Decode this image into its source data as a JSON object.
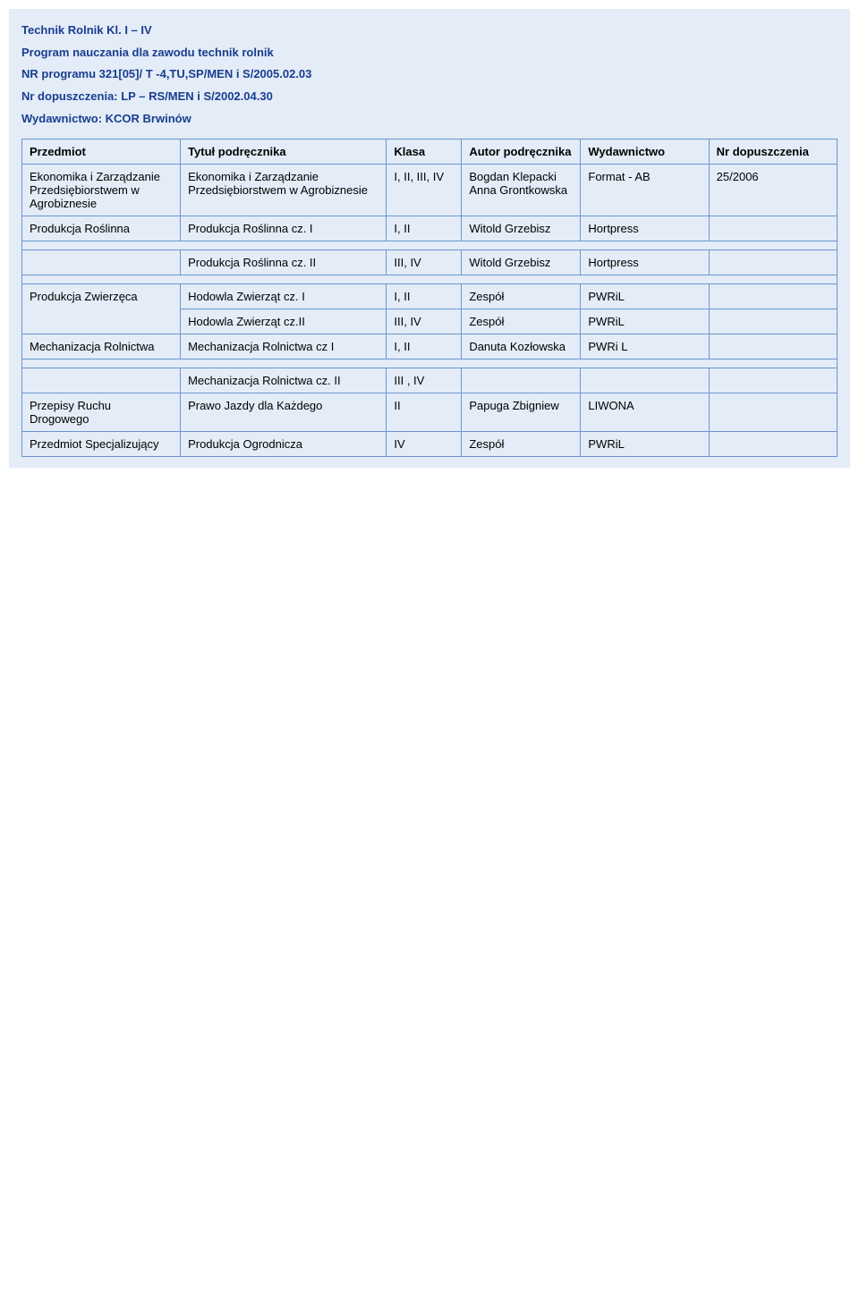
{
  "colors": {
    "page_bg": "#e3ecf7",
    "border": "#6b96d0",
    "heading_text": "#1a3d8f"
  },
  "header": {
    "line1": "Technik Rolnik Kl. I – IV",
    "line2": "Program nauczania dla zawodu technik rolnik",
    "line3": "NR programu 321[05]/ T -4,TU,SP/MEN i S/2005.02.03",
    "line4": "Nr dopuszczenia: LP – RS/MEN i S/2002.04.30",
    "line5": "Wydawnictwo: KCOR Brwinów"
  },
  "table": {
    "headers": {
      "c1": "Przedmiot",
      "c2": "Tytuł podręcznika",
      "c3": "Klasa",
      "c4": "Autor podręcznika",
      "c5": "Wydawnictwo",
      "c6": "Nr dopuszczenia"
    },
    "rows": [
      {
        "c1": "Ekonomika i Zarządzanie Przedsiębiorstwem w Agrobiznesie",
        "c2": "Ekonomika i Zarządzanie Przedsiębiorstwem w Agrobiznesie",
        "c3": "I, II, III, IV",
        "c4": "Bogdan Klepacki\nAnna Grontkowska",
        "c5": "Format - AB",
        "c6": "25/2006"
      },
      {
        "c1": "Produkcja Roślinna",
        "c2": "Produkcja Roślinna cz. I",
        "c3": "I, II",
        "c4": "Witold Grzebisz",
        "c5": "Hortpress",
        "c6": ""
      },
      {
        "c1": "",
        "c2": "Produkcja Roślinna cz. II",
        "c3": "III, IV",
        "c4": "Witold Grzebisz",
        "c5": "Hortpress",
        "c6": ""
      },
      {
        "c1": "Produkcja Zwierzęca",
        "c2": "Hodowla Zwierząt cz.  I",
        "c3": "I, II",
        "c4": "Zespół",
        "c5": "PWRiL",
        "c6": "",
        "rowspan_c1": 2
      },
      {
        "c2": "Hodowla Zwierząt cz.II",
        "c3": "III, IV",
        "c4": "Zespół",
        "c5": "PWRiL",
        "c6": ""
      },
      {
        "c1": "Mechanizacja Rolnictwa",
        "c2": "Mechanizacja Rolnictwa cz I",
        "c3": "I, II",
        "c4": "Danuta Kozłowska",
        "c5": "PWRi L",
        "c6": ""
      },
      {
        "c1": "",
        "c2": "Mechanizacja Rolnictwa cz. II",
        "c3": "III , IV",
        "c4": "",
        "c5": "",
        "c6": ""
      },
      {
        "c1": "Przepisy Ruchu Drogowego",
        "c2": "Prawo Jazdy dla Każdego",
        "c3": "II",
        "c4": "Papuga Zbigniew",
        "c5": "LIWONA",
        "c6": ""
      },
      {
        "c1": "Przedmiot Specjalizujący",
        "c2": "Produkcja Ogrodnicza",
        "c3": "IV",
        "c4": "Zespół",
        "c5": "PWRiL",
        "c6": ""
      }
    ]
  }
}
